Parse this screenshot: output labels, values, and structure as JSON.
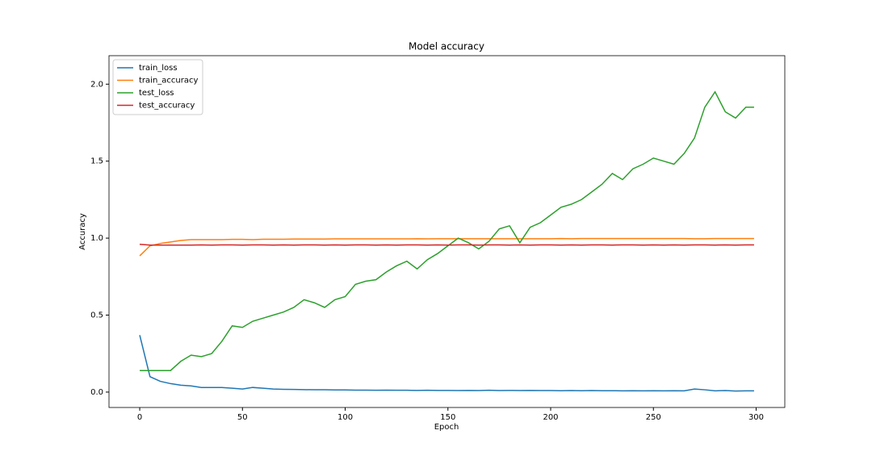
{
  "chart_data": {
    "type": "line",
    "title": "Model accuracy",
    "x_label": "Epoch",
    "y_label": "Accuracy",
    "x": [
      0,
      5,
      10,
      15,
      20,
      25,
      30,
      35,
      40,
      45,
      50,
      55,
      60,
      65,
      70,
      75,
      80,
      85,
      90,
      95,
      100,
      105,
      110,
      115,
      120,
      125,
      130,
      135,
      140,
      145,
      150,
      155,
      160,
      165,
      170,
      175,
      180,
      185,
      190,
      195,
      200,
      205,
      210,
      215,
      220,
      225,
      230,
      235,
      240,
      245,
      250,
      255,
      260,
      265,
      270,
      275,
      280,
      285,
      290,
      295,
      299
    ],
    "series": [
      {
        "name": "train_loss",
        "color": "#1f77b4",
        "values": [
          0.37,
          0.1,
          0.07,
          0.055,
          0.045,
          0.04,
          0.03,
          0.03,
          0.03,
          0.025,
          0.02,
          0.03,
          0.025,
          0.02,
          0.018,
          0.017,
          0.016,
          0.015,
          0.015,
          0.014,
          0.014,
          0.013,
          0.013,
          0.012,
          0.013,
          0.012,
          0.012,
          0.011,
          0.012,
          0.011,
          0.011,
          0.01,
          0.011,
          0.01,
          0.012,
          0.01,
          0.011,
          0.01,
          0.011,
          0.01,
          0.01,
          0.009,
          0.01,
          0.009,
          0.01,
          0.009,
          0.009,
          0.008,
          0.009,
          0.008,
          0.009,
          0.008,
          0.009,
          0.008,
          0.02,
          0.015,
          0.008,
          0.01,
          0.007,
          0.008,
          0.008
        ]
      },
      {
        "name": "train_accuracy",
        "color": "#ff7f0e",
        "values": [
          0.885,
          0.95,
          0.965,
          0.975,
          0.985,
          0.99,
          0.99,
          0.99,
          0.99,
          0.992,
          0.992,
          0.99,
          0.993,
          0.993,
          0.993,
          0.994,
          0.994,
          0.994,
          0.994,
          0.995,
          0.995,
          0.995,
          0.995,
          0.995,
          0.995,
          0.995,
          0.995,
          0.996,
          0.995,
          0.996,
          0.996,
          0.996,
          0.996,
          0.996,
          0.996,
          0.996,
          0.996,
          0.996,
          0.996,
          0.996,
          0.996,
          0.997,
          0.996,
          0.997,
          0.997,
          0.997,
          0.997,
          0.997,
          0.997,
          0.997,
          0.997,
          0.997,
          0.997,
          0.997,
          0.996,
          0.996,
          0.997,
          0.997,
          0.997,
          0.997,
          0.997
        ]
      },
      {
        "name": "test_loss",
        "color": "#2ca02c",
        "values": [
          0.14,
          0.14,
          0.14,
          0.14,
          0.2,
          0.24,
          0.23,
          0.25,
          0.33,
          0.43,
          0.42,
          0.46,
          0.48,
          0.5,
          0.52,
          0.55,
          0.6,
          0.58,
          0.55,
          0.6,
          0.62,
          0.7,
          0.72,
          0.73,
          0.78,
          0.82,
          0.85,
          0.8,
          0.86,
          0.9,
          0.95,
          1.0,
          0.97,
          0.93,
          0.98,
          1.06,
          1.08,
          0.97,
          1.07,
          1.1,
          1.15,
          1.2,
          1.22,
          1.25,
          1.3,
          1.35,
          1.42,
          1.38,
          1.45,
          1.48,
          1.52,
          1.5,
          1.48,
          1.55,
          1.65,
          1.85,
          1.95,
          1.82,
          1.78,
          1.85,
          1.85
        ]
      },
      {
        "name": "test_accuracy",
        "color": "#d62728",
        "values": [
          0.96,
          0.955,
          0.955,
          0.955,
          0.955,
          0.955,
          0.956,
          0.955,
          0.956,
          0.956,
          0.955,
          0.956,
          0.956,
          0.955,
          0.956,
          0.955,
          0.956,
          0.956,
          0.955,
          0.956,
          0.955,
          0.956,
          0.956,
          0.955,
          0.956,
          0.955,
          0.956,
          0.956,
          0.955,
          0.956,
          0.955,
          0.956,
          0.956,
          0.955,
          0.956,
          0.956,
          0.955,
          0.956,
          0.955,
          0.956,
          0.956,
          0.955,
          0.956,
          0.955,
          0.956,
          0.956,
          0.955,
          0.956,
          0.956,
          0.955,
          0.956,
          0.955,
          0.956,
          0.955,
          0.956,
          0.956,
          0.955,
          0.956,
          0.955,
          0.956,
          0.956
        ]
      }
    ],
    "xlim": [
      -14.95,
      313.95
    ],
    "ylim": [
      -0.1,
      2.185
    ],
    "xticks": [
      0,
      50,
      100,
      150,
      200,
      250,
      300
    ],
    "yticks": [
      {
        "value": 0,
        "label": "0.0"
      },
      0.5,
      {
        "value": 1,
        "label": "1.0"
      },
      1.5,
      {
        "value": 2,
        "label": "2.0"
      }
    ],
    "legend": "upper left"
  }
}
